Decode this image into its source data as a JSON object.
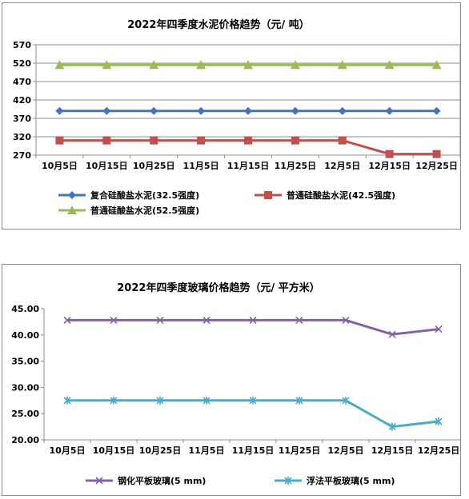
{
  "chart_data": [
    {
      "type": "line",
      "title": "2022年四季度水泥价格趋势（元/ 吨）",
      "xlabel": "",
      "ylabel": "",
      "categories": [
        "10月5日",
        "10月15日",
        "10月25日",
        "11月5日",
        "11月15日",
        "11月25日",
        "12月5日",
        "12月15日",
        "12月25日"
      ],
      "ylim": [
        270,
        570
      ],
      "yticks": [
        "270",
        "320",
        "370",
        "420",
        "470",
        "520",
        "570"
      ],
      "grid": true,
      "legend_position": "bottom",
      "series": [
        {
          "name": "复合硅酸盐水泥(32.5强度)",
          "color": "#4472C4",
          "marker": "diamond",
          "values": [
            390,
            390,
            390,
            390,
            390,
            390,
            390,
            390,
            390
          ]
        },
        {
          "name": "普通硅酸盐水泥(42.5强度)",
          "color": "#C0504D",
          "marker": "square",
          "values": [
            310,
            310,
            310,
            310,
            310,
            310,
            310,
            273,
            273
          ]
        },
        {
          "name": "普通硅酸盐水泥(52.5强度)",
          "color": "#9BBB59",
          "marker": "triangle",
          "values": [
            515,
            515,
            515,
            515,
            515,
            515,
            515,
            515,
            515
          ]
        }
      ]
    },
    {
      "type": "line",
      "title": "2022年四季度玻璃价格趋势（元/ 平方米）",
      "xlabel": "",
      "ylabel": "",
      "categories": [
        "10月5日",
        "10月15日",
        "10月25日",
        "11月5日",
        "11月15日",
        "11月25日",
        "12月5日",
        "12月15日",
        "12月25日"
      ],
      "ylim": [
        20,
        45
      ],
      "yticks": [
        "20.00",
        "25.00",
        "30.00",
        "35.00",
        "40.00",
        "45.00"
      ],
      "grid": false,
      "legend_position": "bottom",
      "series": [
        {
          "name": "钢化平板玻璃(5 mm)",
          "color": "#8064A2",
          "marker": "x",
          "values": [
            42.8,
            42.8,
            42.8,
            42.8,
            42.8,
            42.8,
            42.8,
            40.1,
            41.1
          ]
        },
        {
          "name": "浮法平板玻璃(5 mm)",
          "color": "#4BACC6",
          "marker": "star",
          "values": [
            27.5,
            27.5,
            27.5,
            27.5,
            27.5,
            27.5,
            27.5,
            22.5,
            23.5
          ]
        }
      ]
    }
  ]
}
